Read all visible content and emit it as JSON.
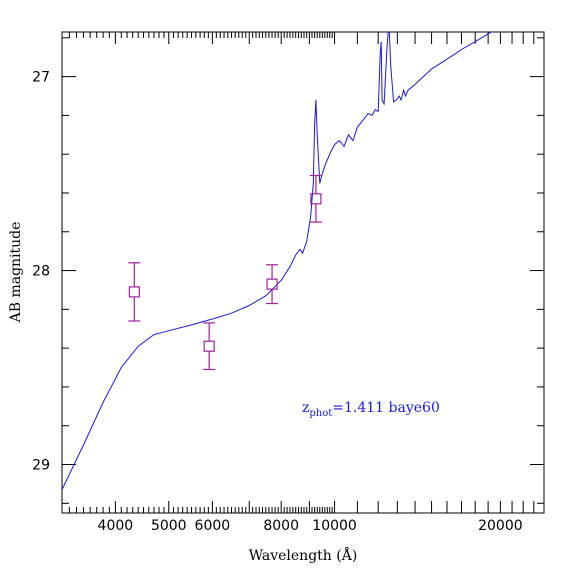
{
  "chart_data": {
    "type": "line",
    "xlabel": "Wavelength (Å)",
    "ylabel": "AB magnitude",
    "x_scale": "log",
    "xlim": [
      3200,
      24000
    ],
    "ylim": [
      29.25,
      26.77
    ],
    "x_ticks": [
      4000,
      5000,
      6000,
      8000,
      10000,
      20000
    ],
    "x_tick_labels": [
      "4000",
      "5000",
      "6000",
      "8000",
      "10000",
      "20000"
    ],
    "y_ticks": [
      27,
      28,
      29
    ],
    "y_tick_labels": [
      "27",
      "28",
      "29"
    ],
    "annotation": {
      "parts": [
        "z",
        "phot",
        "=1.411  baye60"
      ]
    },
    "series": [
      {
        "kind": "sed-model",
        "color": "#1a1adc",
        "points": [
          [
            3200,
            29.13
          ],
          [
            3500,
            28.9
          ],
          [
            3800,
            28.68
          ],
          [
            4100,
            28.5
          ],
          [
            4400,
            28.39
          ],
          [
            4700,
            28.33
          ],
          [
            5000,
            28.31
          ],
          [
            5500,
            28.28
          ],
          [
            6000,
            28.25
          ],
          [
            6500,
            28.22
          ],
          [
            7000,
            28.18
          ],
          [
            7500,
            28.13
          ],
          [
            8000,
            28.05
          ],
          [
            8300,
            27.98
          ],
          [
            8500,
            27.92
          ],
          [
            8650,
            27.89
          ],
          [
            8750,
            27.91
          ],
          [
            8900,
            27.85
          ],
          [
            9050,
            27.72
          ],
          [
            9150,
            27.55
          ],
          [
            9200,
            27.25
          ],
          [
            9250,
            27.12
          ],
          [
            9300,
            27.3
          ],
          [
            9400,
            27.55
          ],
          [
            9500,
            27.5
          ],
          [
            9600,
            27.46
          ],
          [
            9800,
            27.4
          ],
          [
            10000,
            27.35
          ],
          [
            10200,
            27.33
          ],
          [
            10400,
            27.36
          ],
          [
            10600,
            27.3
          ],
          [
            10800,
            27.33
          ],
          [
            11000,
            27.26
          ],
          [
            11300,
            27.22
          ],
          [
            11500,
            27.19
          ],
          [
            11700,
            27.2
          ],
          [
            11850,
            27.17
          ],
          [
            12000,
            27.18
          ],
          [
            12100,
            26.88
          ],
          [
            12150,
            26.82
          ],
          [
            12200,
            27.12
          ],
          [
            12300,
            27.14
          ],
          [
            12450,
            26.85
          ],
          [
            12550,
            26.72
          ],
          [
            12650,
            26.95
          ],
          [
            12800,
            27.13
          ],
          [
            12950,
            27.12
          ],
          [
            13100,
            27.1
          ],
          [
            13200,
            27.12
          ],
          [
            13350,
            27.07
          ],
          [
            13450,
            27.1
          ],
          [
            13600,
            27.07
          ],
          [
            14000,
            27.04
          ],
          [
            15000,
            26.96
          ],
          [
            16000,
            26.91
          ],
          [
            17000,
            26.86
          ],
          [
            18000,
            26.82
          ],
          [
            19000,
            26.78
          ],
          [
            20000,
            26.74
          ],
          [
            22000,
            26.66
          ],
          [
            24000,
            26.58
          ]
        ]
      }
    ],
    "points": {
      "kind": "photometry",
      "color": "#a020a0",
      "values": [
        {
          "x": 4330,
          "y": 28.11,
          "err": 0.15
        },
        {
          "x": 5920,
          "y": 28.39,
          "err": 0.12
        },
        {
          "x": 7700,
          "y": 28.07,
          "err": 0.1
        },
        {
          "x": 9250,
          "y": 27.63,
          "err": 0.12
        }
      ]
    }
  }
}
